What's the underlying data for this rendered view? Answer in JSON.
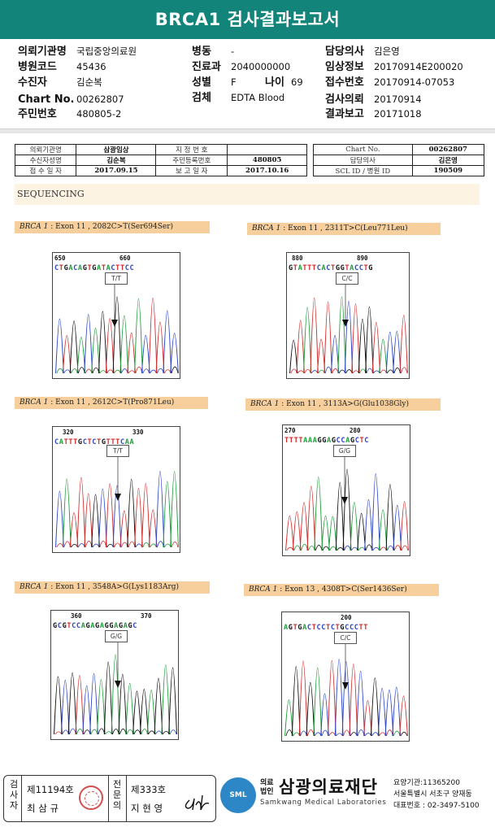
{
  "title": "BRCA1 검사결과보고서",
  "patient": {
    "institution_label": "의뢰기관명",
    "institution": "국립중앙의료원",
    "hospital_code_label": "병원코드",
    "hospital_code": "45436",
    "examinee_label": "수진자",
    "examinee": "김순복",
    "chart_no_label": "Chart No.",
    "chart_no": "00262807",
    "rrn_label": "주민번호",
    "rrn": "480805-2",
    "ward_label": "병동",
    "ward": "-",
    "dept_label": "진료과",
    "dept": "2040000000",
    "sex_label": "성별",
    "sex": "F",
    "age_label": "나이",
    "age": "69",
    "specimen_label": "검체",
    "specimen": "EDTA Blood",
    "doctor_label": "담당의사",
    "doctor": "김은영",
    "clinical_label": "임상정보",
    "clinical": "20170914E200020",
    "receipt_label": "접수번호",
    "receipt": "20170914-07053",
    "request_label": "검사의뢰",
    "request": "20170914",
    "report_label": "결과보고",
    "report": "20171018"
  },
  "scan_meta": {
    "r1": [
      "의뢰기관명",
      "삼광임상",
      "지 정 번 호",
      "",
      "Chart No.",
      "00262807"
    ],
    "r2": [
      "수신자성명",
      "김순복",
      "주민등록번호",
      "480805",
      "담당의사",
      "김은영"
    ],
    "r3": [
      "접 수 일 자",
      "2017.09.15",
      "보 고 일 자",
      "2017.10.16",
      "SCL ID / 병원 ID",
      "190509"
    ]
  },
  "sequencing_title": "SEQUENCING",
  "panels": [
    {
      "gene": "BRCA 1",
      "desc": " : Exon 11 , 2082C>T(Ser694Ser)",
      "seq": "CTGACAGTGATACTTCC",
      "pos1": "650",
      "pos2": "660",
      "genotype": "T/T"
    },
    {
      "gene": "BRCA 1",
      "desc": " : Exon 11 , 2311T>C(Leu771Leu)",
      "seq": "GTATTTCACTGGTACCTG",
      "pos1": "880",
      "pos2": "890",
      "genotype": "C/C"
    },
    {
      "gene": "BRCA 1",
      "desc": " : Exon 11 , 2612C>T(Pro871Leu)",
      "seq": "CATTTGCTCTGTTTCAA",
      "pos1": "320",
      "pos2": "330",
      "genotype": "T/T"
    },
    {
      "gene": "BRCA 1",
      "desc": " : Exon 11 , 3113A>G(Glu1038Gly)",
      "seq": "TTTTAAAGGAGCCAGCTC",
      "pos1": "270",
      "pos2": "280",
      "genotype": "G/G"
    },
    {
      "gene": "BRCA 1",
      "desc": " : Exon 11 , 3548A>G(Lys1183Arg)",
      "seq": "GCGTCCAGAGAGGAGAGC",
      "pos1": "360",
      "pos2": "370",
      "genotype": "G/G"
    },
    {
      "gene": "BRCA 1",
      "desc": " : Exon 13 , 4308T>C(Ser1436Ser)",
      "seq": "AGTGACTCCTCTGCCCTT",
      "pos1": "",
      "pos2": "200",
      "genotype": "C/C"
    }
  ],
  "footer": {
    "inspector_label": "검사자",
    "inspector_no": "제11194호",
    "inspector_name": "최 삼 규",
    "reviewer_label": "전문의",
    "reviewer_no": "제333호",
    "reviewer_name": "지 현 영",
    "org_prefix": "의료법인",
    "org_name": "삼광의료재단",
    "org_icon": "SML",
    "org_eng": "Samkwang Medical Laboratories",
    "org_code": "요양기관:11365200",
    "org_address": "서울특별시 서초구 양재동",
    "org_phone": "대표번호 : 02-3497-5100"
  },
  "colors": {
    "header": "#13847a",
    "A": "#1f9d3a",
    "C": "#2b45c9",
    "G": "#111111",
    "T": "#d22d2d"
  }
}
